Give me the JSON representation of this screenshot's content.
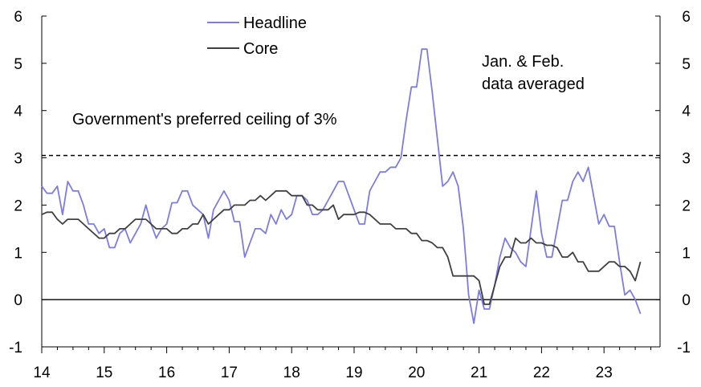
{
  "chart_data": {
    "type": "line",
    "x_start": 2014.0,
    "x_step_per_point": 0.08333,
    "xlim": [
      2014,
      2023.9
    ],
    "x_ticks": [
      14,
      15,
      16,
      17,
      18,
      19,
      20,
      21,
      22,
      23
    ],
    "ylim": [
      -1,
      6
    ],
    "y_ticks": [
      -1,
      0,
      1,
      2,
      3,
      4,
      5,
      6
    ],
    "series": [
      {
        "name": "Headline",
        "color": "#7b7bea",
        "values": [
          2.4,
          2.25,
          2.25,
          2.4,
          1.8,
          2.5,
          2.3,
          2.3,
          2.0,
          1.6,
          1.6,
          1.4,
          1.5,
          1.1,
          1.1,
          1.4,
          1.5,
          1.2,
          1.4,
          1.6,
          2.0,
          1.6,
          1.3,
          1.5,
          1.6,
          2.05,
          2.05,
          2.3,
          2.3,
          2.0,
          1.9,
          1.8,
          1.3,
          1.9,
          2.1,
          2.3,
          2.1,
          1.65,
          1.65,
          0.9,
          1.2,
          1.5,
          1.5,
          1.4,
          1.8,
          1.6,
          1.9,
          1.7,
          1.8,
          2.2,
          2.2,
          2.1,
          1.8,
          1.8,
          1.9,
          2.1,
          2.3,
          2.5,
          2.5,
          2.2,
          1.9,
          1.6,
          1.6,
          2.3,
          2.5,
          2.7,
          2.7,
          2.8,
          2.8,
          3.0,
          3.8,
          4.5,
          4.5,
          5.3,
          5.3,
          4.4,
          3.4,
          2.4,
          2.5,
          2.7,
          2.4,
          1.5,
          0.1,
          -0.5,
          0.2,
          -0.2,
          -0.2,
          0.3,
          0.9,
          1.3,
          1.1,
          1.0,
          0.8,
          0.7,
          1.5,
          2.3,
          1.4,
          0.9,
          0.9,
          1.5,
          2.1,
          2.1,
          2.5,
          2.7,
          2.5,
          2.8,
          2.2,
          1.6,
          1.8,
          1.55,
          1.55,
          0.8,
          0.1,
          0.2,
          0.0,
          -0.3
        ]
      },
      {
        "name": "Core",
        "color": "#404040",
        "values": [
          1.8,
          1.85,
          1.85,
          1.7,
          1.6,
          1.7,
          1.7,
          1.7,
          1.6,
          1.5,
          1.4,
          1.3,
          1.3,
          1.4,
          1.4,
          1.5,
          1.5,
          1.6,
          1.7,
          1.7,
          1.7,
          1.6,
          1.5,
          1.5,
          1.5,
          1.4,
          1.4,
          1.5,
          1.5,
          1.6,
          1.6,
          1.8,
          1.6,
          1.7,
          1.8,
          1.9,
          1.9,
          2.0,
          2.0,
          2.0,
          2.1,
          2.1,
          2.2,
          2.1,
          2.2,
          2.3,
          2.3,
          2.3,
          2.2,
          2.2,
          2.2,
          2.0,
          2.0,
          1.9,
          1.9,
          1.9,
          2.0,
          1.7,
          1.8,
          1.8,
          1.8,
          1.85,
          1.85,
          1.8,
          1.7,
          1.6,
          1.6,
          1.6,
          1.5,
          1.5,
          1.5,
          1.4,
          1.4,
          1.25,
          1.25,
          1.2,
          1.1,
          1.1,
          0.9,
          0.5,
          0.5,
          0.5,
          0.5,
          0.5,
          0.4,
          -0.1,
          -0.1,
          0.3,
          0.7,
          0.9,
          0.9,
          1.3,
          1.2,
          1.2,
          1.3,
          1.2,
          1.2,
          1.15,
          1.15,
          1.1,
          0.9,
          0.9,
          1.0,
          0.8,
          0.8,
          0.6,
          0.6,
          0.6,
          0.7,
          0.8,
          0.8,
          0.7,
          0.7,
          0.6,
          0.4,
          0.8
        ]
      }
    ],
    "reference_line": {
      "y": 3.05,
      "style": "dashed"
    },
    "legend": {
      "placement": "top-center",
      "items": [
        "Headline",
        "Core"
      ]
    },
    "annotations": [
      {
        "text": "Government's preferred ceiling of 3%"
      },
      {
        "text": "Jan. & Feb."
      },
      {
        "text": "data averaged"
      }
    ]
  }
}
